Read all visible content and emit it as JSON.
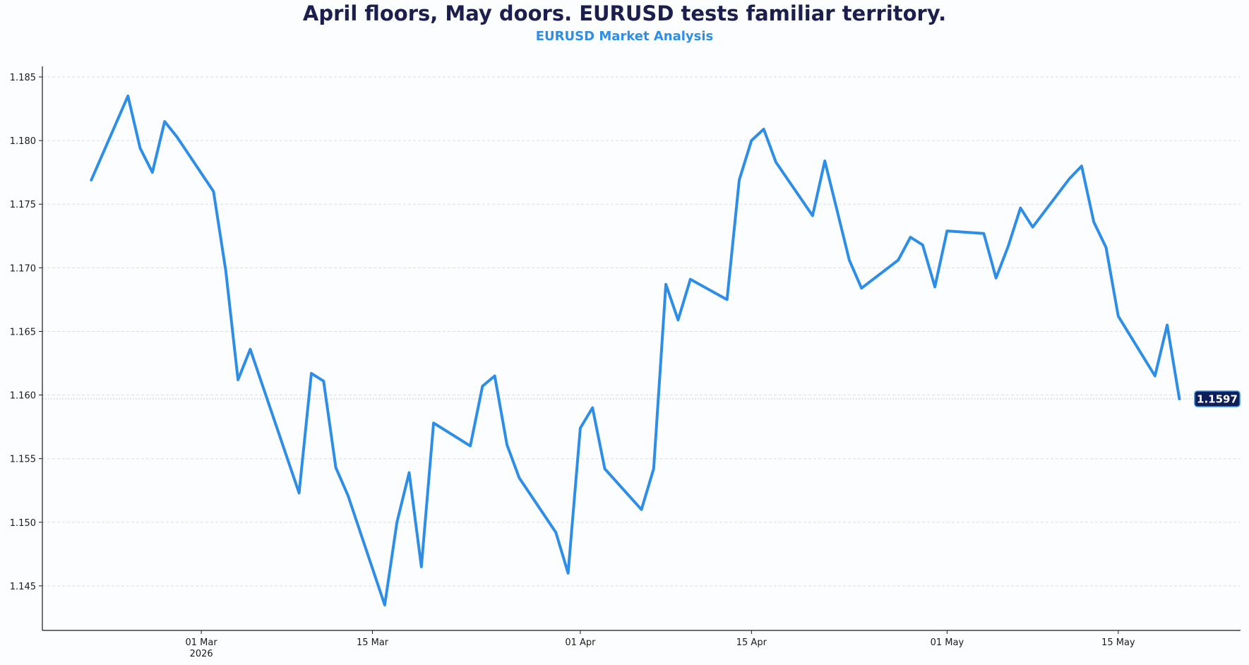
{
  "chart_data": {
    "type": "line",
    "title": "April floors, May doors. EURUSD tests familiar territory.",
    "subtitle": "EURUSD Market Analysis",
    "xlabel": "",
    "ylabel": "",
    "ylim": [
      1.1415,
      1.1855
    ],
    "xlim": [
      "2026-02-16",
      "2026-05-25"
    ],
    "grid": {
      "y": true,
      "x": false,
      "style": "dashed"
    },
    "y_ticks": [
      1.145,
      1.15,
      1.155,
      1.16,
      1.165,
      1.17,
      1.175,
      1.18,
      1.185
    ],
    "y_tick_labels": [
      "1.145",
      "1.150",
      "1.155",
      "1.160",
      "1.165",
      "1.170",
      "1.175",
      "1.180",
      "1.185"
    ],
    "x_ticks": [
      {
        "date": "2026-03-01",
        "label": "01 Mar",
        "sublabel": "2026"
      },
      {
        "date": "2026-03-15",
        "label": "15 Mar",
        "sublabel": ""
      },
      {
        "date": "2026-04-01",
        "label": "01 Apr",
        "sublabel": ""
      },
      {
        "date": "2026-04-15",
        "label": "15 Apr",
        "sublabel": ""
      },
      {
        "date": "2026-05-01",
        "label": "01 May",
        "sublabel": ""
      },
      {
        "date": "2026-05-15",
        "label": "15 May",
        "sublabel": ""
      }
    ],
    "series": [
      {
        "color": "#2e8ee6",
        "points": [
          [
            "2026-02-20",
            1.1769
          ],
          [
            "2026-02-23",
            1.1835
          ],
          [
            "2026-02-24",
            1.1794
          ],
          [
            "2026-02-25",
            1.1775
          ],
          [
            "2026-02-26",
            1.1815
          ],
          [
            "2026-02-27",
            1.1803
          ],
          [
            "2026-03-02",
            1.176
          ],
          [
            "2026-03-03",
            1.1698
          ],
          [
            "2026-03-04",
            1.1612
          ],
          [
            "2026-03-05",
            1.1636
          ],
          [
            "2026-03-09",
            1.1523
          ],
          [
            "2026-03-10",
            1.1617
          ],
          [
            "2026-03-11",
            1.1611
          ],
          [
            "2026-03-12",
            1.1543
          ],
          [
            "2026-03-13",
            1.1521
          ],
          [
            "2026-03-16",
            1.1435
          ],
          [
            "2026-03-17",
            1.15
          ],
          [
            "2026-03-18",
            1.1539
          ],
          [
            "2026-03-19",
            1.1465
          ],
          [
            "2026-03-20",
            1.1578
          ],
          [
            "2026-03-23",
            1.156
          ],
          [
            "2026-03-24",
            1.1607
          ],
          [
            "2026-03-25",
            1.1615
          ],
          [
            "2026-03-26",
            1.1561
          ],
          [
            "2026-03-27",
            1.1535
          ],
          [
            "2026-03-30",
            1.1492
          ],
          [
            "2026-03-31",
            1.146
          ],
          [
            "2026-04-01",
            1.1574
          ],
          [
            "2026-04-02",
            1.159
          ],
          [
            "2026-04-03",
            1.1542
          ],
          [
            "2026-04-06",
            1.151
          ],
          [
            "2026-04-07",
            1.1542
          ],
          [
            "2026-04-08",
            1.1687
          ],
          [
            "2026-04-09",
            1.1659
          ],
          [
            "2026-04-10",
            1.1691
          ],
          [
            "2026-04-13",
            1.1675
          ],
          [
            "2026-04-14",
            1.1769
          ],
          [
            "2026-04-15",
            1.18
          ],
          [
            "2026-04-16",
            1.1809
          ],
          [
            "2026-04-17",
            1.1783
          ],
          [
            "2026-04-20",
            1.1741
          ],
          [
            "2026-04-21",
            1.1784
          ],
          [
            "2026-04-22",
            1.1745
          ],
          [
            "2026-04-23",
            1.1706
          ],
          [
            "2026-04-24",
            1.1684
          ],
          [
            "2026-04-27",
            1.1706
          ],
          [
            "2026-04-28",
            1.1724
          ],
          [
            "2026-04-29",
            1.1718
          ],
          [
            "2026-04-30",
            1.1685
          ],
          [
            "2026-05-01",
            1.1729
          ],
          [
            "2026-05-04",
            1.1727
          ],
          [
            "2026-05-05",
            1.1692
          ],
          [
            "2026-05-06",
            1.1717
          ],
          [
            "2026-05-07",
            1.1747
          ],
          [
            "2026-05-08",
            1.1732
          ],
          [
            "2026-05-11",
            1.177
          ],
          [
            "2026-05-12",
            1.178
          ],
          [
            "2026-05-13",
            1.1736
          ],
          [
            "2026-05-14",
            1.1716
          ],
          [
            "2026-05-15",
            1.1662
          ],
          [
            "2026-05-18",
            1.1615
          ],
          [
            "2026-05-19",
            1.1655
          ],
          [
            "2026-05-20",
            1.1597
          ]
        ]
      }
    ],
    "last_value_label": "1.1597",
    "last_value": 1.1597
  },
  "colors": {
    "line": "#2e8ee6",
    "title": "#1c1f4d",
    "subtitle": "#2e8ee6",
    "tag_bg": "#0f1f56",
    "grid": "#d9dde3",
    "axis": "#1a1a1a",
    "background": "#fbfdff"
  }
}
